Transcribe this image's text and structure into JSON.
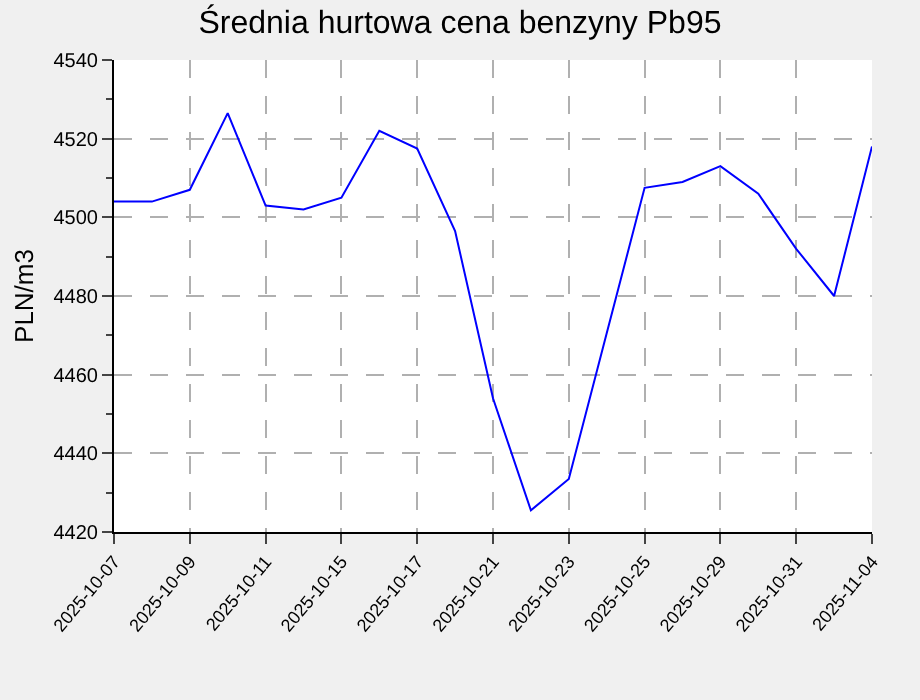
{
  "chart_data": {
    "type": "line",
    "title": "Średnia hurtowa cena benzyny Pb95",
    "ylabel": "PLN/m3",
    "categories": [
      "2025-10-07",
      null,
      "2025-10-09",
      null,
      "2025-10-11",
      null,
      "2025-10-15",
      null,
      "2025-10-17",
      null,
      "2025-10-21",
      null,
      "2025-10-23",
      null,
      "2025-10-25",
      null,
      "2025-10-29",
      null,
      "2025-10-31",
      null,
      "2025-11-04"
    ],
    "series": [
      {
        "color": "#0000ff",
        "values": [
          4504,
          4504,
          4507,
          4526.5,
          4503,
          4502,
          4505,
          4522,
          4517.5,
          4496.5,
          4454,
          4425.5,
          4433.5,
          4470.5,
          4507.5,
          4509,
          4513,
          4506,
          4492,
          4480,
          4518
        ]
      }
    ],
    "ylim": [
      4420,
      4540
    ],
    "yticks": [
      4420,
      4440,
      4460,
      4480,
      4500,
      4520,
      4540
    ],
    "grid": true,
    "marker": "none",
    "line_style": "solid"
  }
}
